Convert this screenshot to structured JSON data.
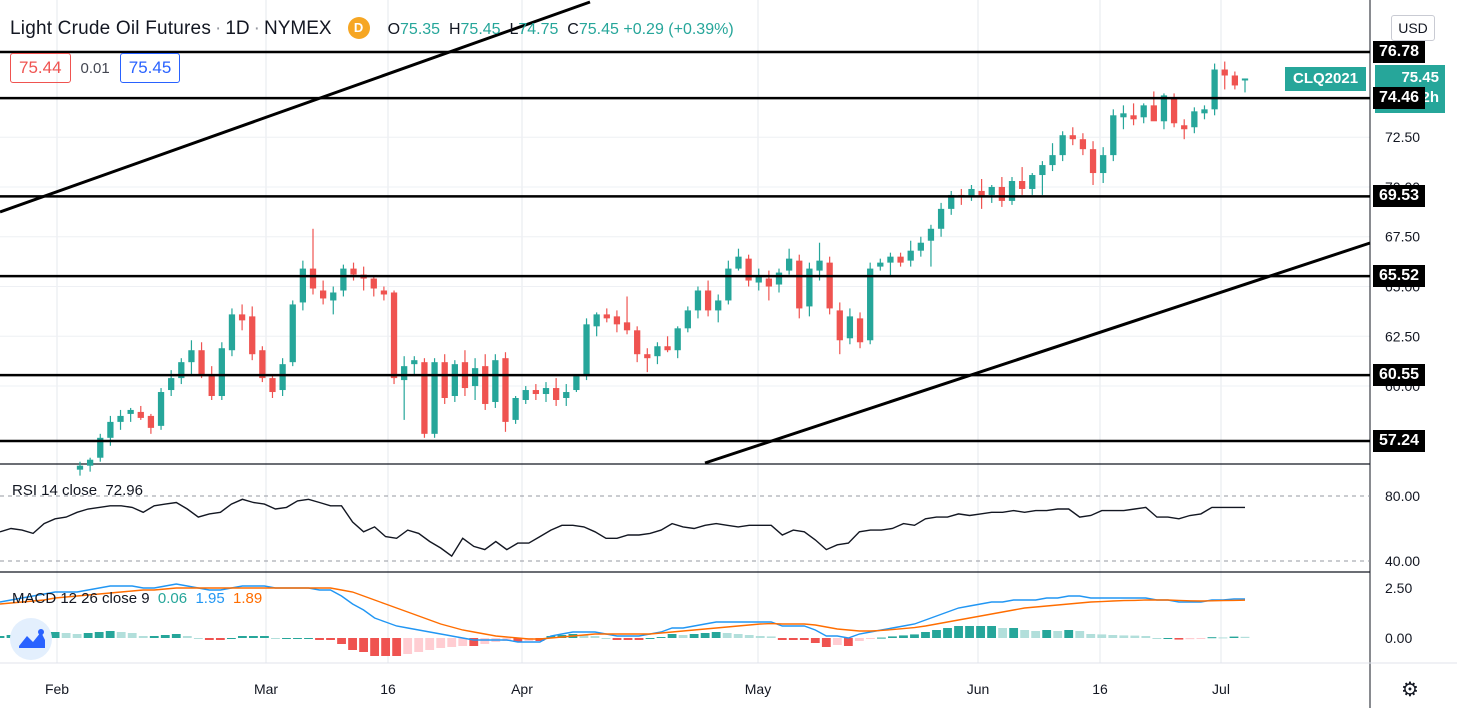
{
  "header": {
    "symbol_name": "Light Crude Oil Futures",
    "interval": "1D",
    "exchange": "NYMEX",
    "delay_badge": "D",
    "ohlc": {
      "o_label": "O",
      "o": "75.35",
      "h_label": "H",
      "h": "75.45",
      "l_label": "L",
      "l": "74.75",
      "c_label": "C",
      "c": "75.45",
      "change": "+0.29 (+0.39%)"
    }
  },
  "quote": {
    "bid": "75.44",
    "spread": "0.01",
    "ask": "75.45"
  },
  "currency_button": "USD",
  "price_tags": {
    "symbol": "CLQ2021",
    "last": "75.45",
    "countdown": "1d 12h",
    "horizontal_levels": [
      "76.78",
      "74.46",
      "69.53",
      "65.52",
      "60.55",
      "57.24"
    ]
  },
  "price_axis_ticks": [
    "72.50",
    "70.00",
    "67.50",
    "65.00",
    "62.50",
    "60.00"
  ],
  "rsi": {
    "label": "RSI 14 close",
    "value": "72.96",
    "ticks": [
      "80.00",
      "40.00"
    ]
  },
  "macd": {
    "label": "MACD 12 26 close 9",
    "hist": "0.06",
    "macd": "1.95",
    "signal": "1.89",
    "ticks": [
      "2.50",
      "0.00"
    ]
  },
  "time_axis": [
    "Feb",
    "Mar",
    "16",
    "Apr",
    "May",
    "Jun",
    "16",
    "Jul"
  ],
  "colors": {
    "up": "#26a69a",
    "down": "#ef5350",
    "macd": "#2196f3",
    "signal": "#ff6d00",
    "rsi": "#131722"
  },
  "chart_data": [
    {
      "type": "candlestick",
      "title": "Light Crude Oil Futures · 1D · NYMEX",
      "y_scale": {
        "min": 55.5,
        "max": 78.5
      },
      "fields": [
        "open",
        "high",
        "low",
        "close"
      ],
      "candles": [
        [
          55.8,
          56.2,
          55.5,
          56.0
        ],
        [
          56.0,
          56.4,
          55.7,
          56.3
        ],
        [
          56.4,
          57.6,
          56.2,
          57.4
        ],
        [
          57.4,
          58.5,
          57.0,
          58.2
        ],
        [
          58.2,
          58.8,
          57.8,
          58.5
        ],
        [
          58.6,
          58.9,
          58.2,
          58.8
        ],
        [
          58.7,
          59.0,
          58.3,
          58.4
        ],
        [
          58.5,
          58.6,
          57.6,
          57.9
        ],
        [
          58.0,
          59.9,
          57.8,
          59.7
        ],
        [
          59.8,
          60.8,
          59.5,
          60.4
        ],
        [
          60.4,
          61.4,
          60.1,
          61.2
        ],
        [
          61.2,
          62.3,
          60.5,
          61.8
        ],
        [
          61.8,
          62.2,
          60.4,
          60.6
        ],
        [
          60.5,
          61.0,
          59.3,
          59.5
        ],
        [
          59.5,
          62.2,
          59.3,
          61.9
        ],
        [
          61.8,
          63.9,
          61.5,
          63.6
        ],
        [
          63.6,
          64.1,
          62.8,
          63.3
        ],
        [
          63.5,
          64.0,
          61.3,
          61.6
        ],
        [
          61.8,
          62.0,
          60.2,
          60.4
        ],
        [
          60.4,
          60.6,
          59.4,
          59.7
        ],
        [
          59.8,
          61.4,
          59.5,
          61.1
        ],
        [
          61.2,
          64.3,
          61.0,
          64.1
        ],
        [
          64.2,
          66.3,
          63.8,
          65.9
        ],
        [
          65.9,
          67.9,
          64.6,
          64.9
        ],
        [
          64.8,
          65.3,
          64.1,
          64.4
        ],
        [
          64.3,
          65.0,
          63.6,
          64.7
        ],
        [
          64.8,
          66.1,
          64.5,
          65.9
        ],
        [
          65.9,
          66.2,
          65.3,
          65.6
        ],
        [
          65.6,
          66.0,
          64.8,
          65.4
        ],
        [
          65.4,
          65.5,
          64.5,
          64.9
        ],
        [
          64.8,
          65.0,
          64.3,
          64.6
        ],
        [
          64.7,
          64.8,
          60.1,
          60.4
        ],
        [
          60.3,
          61.5,
          58.3,
          61.0
        ],
        [
          61.1,
          61.5,
          60.5,
          61.3
        ],
        [
          61.2,
          61.4,
          57.4,
          57.6
        ],
        [
          57.6,
          61.4,
          57.4,
          61.2
        ],
        [
          61.2,
          61.6,
          59.1,
          59.4
        ],
        [
          59.5,
          61.3,
          59.2,
          61.1
        ],
        [
          61.2,
          61.8,
          59.5,
          59.9
        ],
        [
          60.0,
          61.4,
          59.3,
          60.9
        ],
        [
          61.0,
          61.6,
          58.8,
          59.1
        ],
        [
          59.2,
          61.6,
          58.9,
          61.3
        ],
        [
          61.4,
          61.7,
          57.7,
          58.2
        ],
        [
          58.3,
          59.5,
          58.1,
          59.4
        ],
        [
          59.3,
          60.0,
          59.1,
          59.8
        ],
        [
          59.8,
          60.1,
          59.3,
          59.6
        ],
        [
          59.6,
          60.2,
          59.2,
          59.9
        ],
        [
          59.9,
          60.4,
          59.0,
          59.3
        ],
        [
          59.4,
          60.1,
          59.0,
          59.7
        ],
        [
          59.8,
          60.6,
          59.7,
          60.5
        ],
        [
          60.5,
          63.4,
          60.3,
          63.1
        ],
        [
          63.0,
          63.7,
          62.5,
          63.6
        ],
        [
          63.6,
          63.9,
          63.2,
          63.4
        ],
        [
          63.5,
          63.8,
          62.7,
          63.1
        ],
        [
          63.2,
          64.5,
          62.6,
          62.8
        ],
        [
          62.8,
          63.0,
          61.2,
          61.6
        ],
        [
          61.6,
          61.9,
          60.7,
          61.4
        ],
        [
          61.5,
          62.2,
          61.1,
          62.0
        ],
        [
          62.0,
          62.5,
          61.7,
          61.8
        ],
        [
          61.8,
          63.0,
          61.4,
          62.9
        ],
        [
          62.9,
          64.0,
          62.7,
          63.8
        ],
        [
          63.8,
          65.0,
          63.4,
          64.8
        ],
        [
          64.8,
          65.3,
          63.5,
          63.8
        ],
        [
          63.8,
          64.6,
          63.2,
          64.3
        ],
        [
          64.3,
          66.3,
          64.1,
          65.9
        ],
        [
          65.9,
          66.9,
          65.8,
          66.5
        ],
        [
          66.4,
          66.6,
          65.0,
          65.3
        ],
        [
          65.2,
          65.9,
          64.8,
          65.5
        ],
        [
          65.4,
          65.8,
          64.3,
          65.0
        ],
        [
          65.1,
          65.9,
          64.7,
          65.7
        ],
        [
          65.8,
          66.9,
          65.6,
          66.4
        ],
        [
          66.3,
          66.6,
          63.4,
          63.9
        ],
        [
          64.0,
          66.2,
          63.5,
          65.9
        ],
        [
          65.8,
          67.2,
          65.3,
          66.3
        ],
        [
          66.2,
          66.5,
          63.6,
          63.9
        ],
        [
          63.8,
          64.2,
          61.6,
          62.3
        ],
        [
          62.4,
          63.9,
          62.1,
          63.5
        ],
        [
          63.4,
          63.7,
          61.9,
          62.2
        ],
        [
          62.3,
          66.2,
          62.1,
          65.9
        ],
        [
          66.0,
          66.4,
          65.8,
          66.2
        ],
        [
          66.2,
          66.7,
          65.5,
          66.5
        ],
        [
          66.5,
          66.7,
          66.0,
          66.2
        ],
        [
          66.3,
          67.3,
          66.0,
          66.8
        ],
        [
          66.8,
          67.5,
          66.5,
          67.2
        ],
        [
          67.3,
          68.1,
          66.0,
          67.9
        ],
        [
          67.9,
          69.2,
          67.5,
          68.9
        ],
        [
          68.9,
          69.8,
          68.6,
          69.6
        ],
        [
          69.6,
          69.9,
          69.1,
          69.5
        ],
        [
          69.5,
          70.1,
          69.3,
          69.9
        ],
        [
          69.8,
          70.4,
          68.9,
          69.5
        ],
        [
          69.6,
          70.1,
          69.2,
          70.0
        ],
        [
          70.0,
          70.5,
          69.0,
          69.3
        ],
        [
          69.3,
          70.5,
          69.1,
          70.3
        ],
        [
          70.3,
          71.0,
          69.6,
          69.9
        ],
        [
          69.9,
          70.7,
          69.6,
          70.6
        ],
        [
          70.6,
          71.3,
          69.6,
          71.1
        ],
        [
          71.1,
          72.2,
          70.8,
          71.6
        ],
        [
          71.6,
          72.8,
          71.3,
          72.6
        ],
        [
          72.6,
          73.0,
          72.1,
          72.4
        ],
        [
          72.4,
          72.7,
          71.6,
          71.9
        ],
        [
          71.9,
          72.3,
          70.1,
          70.7
        ],
        [
          70.7,
          72.0,
          70.2,
          71.6
        ],
        [
          71.6,
          73.9,
          71.3,
          73.6
        ],
        [
          73.5,
          74.1,
          72.9,
          73.7
        ],
        [
          73.6,
          74.2,
          73.1,
          73.4
        ],
        [
          73.5,
          74.2,
          73.2,
          74.1
        ],
        [
          74.1,
          74.8,
          73.4,
          73.3
        ],
        [
          73.3,
          74.7,
          72.9,
          74.6
        ],
        [
          74.5,
          74.7,
          73.0,
          73.2
        ],
        [
          73.1,
          73.4,
          72.4,
          72.9
        ],
        [
          73.0,
          74.0,
          72.7,
          73.8
        ],
        [
          73.7,
          74.1,
          73.4,
          73.9
        ],
        [
          73.9,
          76.2,
          73.6,
          75.9
        ],
        [
          75.9,
          76.3,
          74.9,
          75.6
        ],
        [
          75.6,
          75.8,
          74.9,
          75.1
        ],
        [
          75.35,
          75.45,
          74.75,
          75.45
        ]
      ]
    },
    {
      "type": "line",
      "title": "RSI 14 close",
      "series": [
        {
          "name": "RSI",
          "values": [
            58,
            60,
            59,
            57,
            63,
            66,
            67,
            70,
            72,
            73,
            74,
            74,
            73,
            70,
            74,
            75,
            76,
            72,
            67,
            69,
            70,
            75,
            78,
            76,
            75,
            72,
            73,
            77,
            78,
            76,
            74,
            74,
            64,
            58,
            61,
            55,
            54,
            59,
            57,
            52,
            48,
            43,
            54,
            49,
            47,
            52,
            47,
            51,
            51,
            55,
            59,
            62,
            62,
            61,
            58,
            54,
            54,
            56,
            56,
            57,
            59,
            63,
            61,
            60,
            62,
            63,
            62,
            61,
            62,
            62,
            62,
            56,
            59,
            58,
            53,
            47,
            50,
            51,
            58,
            59,
            59,
            60,
            63,
            62,
            66,
            67,
            67,
            69,
            68,
            69,
            70,
            70,
            71,
            70,
            71,
            71,
            72,
            72,
            67,
            68,
            71,
            71,
            71,
            72,
            73,
            67,
            67,
            66,
            68,
            69,
            73,
            73,
            73,
            72.96
          ]
        }
      ]
    },
    {
      "type": "bar+line",
      "title": "MACD 12 26 close 9",
      "series": [
        {
          "name": "MACD",
          "values": [
            1.8,
            1.9,
            2.0,
            2.1,
            2.2,
            2.3,
            2.3,
            2.3,
            2.4,
            2.5,
            2.6,
            2.6,
            2.6,
            2.5,
            2.5,
            2.6,
            2.7,
            2.6,
            2.5,
            2.4,
            2.4,
            2.5,
            2.6,
            2.6,
            2.6,
            2.5,
            2.5,
            2.5,
            2.5,
            2.4,
            2.4,
            2.1,
            1.7,
            1.4,
            1.0,
            0.8,
            0.6,
            0.5,
            0.4,
            0.3,
            0.2,
            0.1,
            0.0,
            -0.1,
            -0.1,
            -0.1,
            -0.1,
            -0.2,
            -0.2,
            -0.2,
            0.1,
            0.2,
            0.3,
            0.3,
            0.3,
            0.2,
            0.1,
            0.1,
            0.1,
            0.2,
            0.3,
            0.5,
            0.5,
            0.6,
            0.7,
            0.8,
            0.8,
            0.8,
            0.8,
            0.8,
            0.8,
            0.6,
            0.6,
            0.6,
            0.4,
            0.1,
            0.1,
            0.0,
            0.2,
            0.3,
            0.4,
            0.5,
            0.6,
            0.7,
            0.9,
            1.1,
            1.3,
            1.5,
            1.6,
            1.7,
            1.8,
            1.8,
            1.9,
            1.9,
            1.9,
            2.0,
            2.0,
            2.1,
            2.1,
            2.0,
            2.0,
            2.0,
            2.0,
            2.0,
            2.0,
            1.9,
            1.9,
            1.8,
            1.8,
            1.8,
            1.9,
            1.9,
            1.95,
            1.95
          ]
        },
        {
          "name": "Signal",
          "values": [
            1.7,
            1.75,
            1.8,
            1.85,
            1.9,
            2.0,
            2.05,
            2.1,
            2.15,
            2.2,
            2.25,
            2.3,
            2.35,
            2.4,
            2.4,
            2.45,
            2.5,
            2.5,
            2.5,
            2.5,
            2.5,
            2.5,
            2.5,
            2.5,
            2.5,
            2.5,
            2.5,
            2.5,
            2.5,
            2.5,
            2.5,
            2.4,
            2.3,
            2.1,
            1.9,
            1.7,
            1.5,
            1.3,
            1.1,
            0.9,
            0.7,
            0.55,
            0.4,
            0.3,
            0.2,
            0.1,
            0.05,
            0.0,
            -0.05,
            -0.05,
            0.0,
            0.05,
            0.1,
            0.15,
            0.2,
            0.2,
            0.2,
            0.2,
            0.2,
            0.2,
            0.25,
            0.3,
            0.35,
            0.4,
            0.45,
            0.5,
            0.55,
            0.6,
            0.65,
            0.7,
            0.72,
            0.7,
            0.7,
            0.7,
            0.65,
            0.55,
            0.45,
            0.4,
            0.35,
            0.35,
            0.38,
            0.42,
            0.47,
            0.52,
            0.6,
            0.7,
            0.8,
            0.9,
            1.0,
            1.1,
            1.2,
            1.3,
            1.4,
            1.5,
            1.55,
            1.6,
            1.65,
            1.7,
            1.75,
            1.8,
            1.82,
            1.85,
            1.87,
            1.88,
            1.9,
            1.9,
            1.9,
            1.88,
            1.86,
            1.85,
            1.86,
            1.87,
            1.88,
            1.89
          ]
        },
        {
          "name": "Histogram",
          "values": [
            0.1,
            0.15,
            0.2,
            0.25,
            0.3,
            0.3,
            0.25,
            0.2,
            0.25,
            0.3,
            0.35,
            0.3,
            0.25,
            0.1,
            0.1,
            0.15,
            0.2,
            0.1,
            0.0,
            -0.1,
            -0.1,
            0.0,
            0.1,
            0.1,
            0.1,
            0.0,
            0.0,
            0.0,
            0.0,
            -0.1,
            -0.1,
            -0.3,
            -0.6,
            -0.7,
            -0.9,
            -0.9,
            -0.9,
            -0.8,
            -0.7,
            -0.6,
            -0.5,
            -0.45,
            -0.4,
            -0.4,
            -0.3,
            -0.2,
            -0.15,
            -0.2,
            -0.15,
            -0.15,
            0.1,
            0.15,
            0.2,
            0.15,
            0.1,
            0.0,
            -0.1,
            -0.1,
            -0.1,
            0.0,
            0.05,
            0.2,
            0.15,
            0.2,
            0.25,
            0.3,
            0.25,
            0.2,
            0.15,
            0.1,
            0.08,
            -0.1,
            -0.1,
            -0.1,
            -0.25,
            -0.45,
            -0.35,
            -0.4,
            -0.15,
            -0.05,
            0.02,
            0.08,
            0.13,
            0.18,
            0.3,
            0.4,
            0.5,
            0.6,
            0.6,
            0.6,
            0.6,
            0.5,
            0.5,
            0.4,
            0.35,
            0.4,
            0.35,
            0.4,
            0.35,
            0.2,
            0.18,
            0.15,
            0.13,
            0.12,
            0.1,
            0.0,
            0.0,
            -0.08,
            -0.06,
            -0.05,
            0.04,
            0.03,
            0.07,
            0.06
          ]
        }
      ]
    }
  ]
}
